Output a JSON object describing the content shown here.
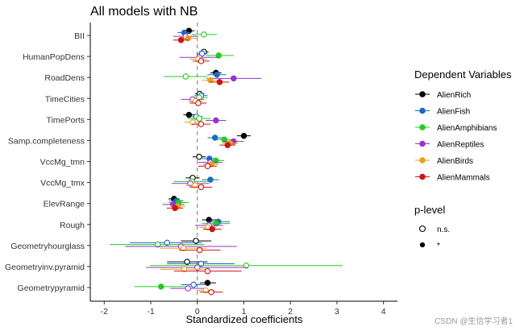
{
  "chart_data": {
    "type": "forest",
    "title": "All models with NB",
    "xlabel": "Standardized coefficients",
    "ylabel": "",
    "xlim": [
      -2.3,
      4.3
    ],
    "x_ticks": [
      -2,
      -1,
      0,
      1,
      2,
      3,
      4
    ],
    "reference_line_x": 0,
    "grid": false,
    "legend_position": "right",
    "categories": [
      "BII",
      "HumanPopDens",
      "RoadDens",
      "TimeCities",
      "TimePorts",
      "Samp.completeness",
      "VccMg_tmn",
      "VccMg_tmx",
      "ElevRange",
      "Rough",
      "Geometryhourglass",
      "Geometryinv.pyramid",
      "Geometrypyramid"
    ],
    "color_legend_title": "Dependent Variables",
    "shape_legend_title": "p-level",
    "shape_legend": [
      {
        "label": "n.s.",
        "marker": "open"
      },
      {
        "label": "*",
        "marker": "filled"
      }
    ],
    "series": [
      {
        "name": "AlienRich",
        "color": "#000000",
        "values": [
          {
            "est": -0.18,
            "lo": -0.3,
            "hi": -0.06,
            "sig": true
          },
          {
            "est": 0.14,
            "lo": 0.04,
            "hi": 0.24,
            "sig": false
          },
          {
            "est": 0.4,
            "lo": 0.28,
            "hi": 0.52,
            "sig": true
          },
          {
            "est": 0.05,
            "lo": -0.05,
            "hi": 0.15,
            "sig": false
          },
          {
            "est": -0.18,
            "lo": -0.3,
            "hi": -0.06,
            "sig": true
          },
          {
            "est": 1.0,
            "lo": 0.85,
            "hi": 1.15,
            "sig": true
          },
          {
            "est": 0.04,
            "lo": -0.1,
            "hi": 0.18,
            "sig": false
          },
          {
            "est": -0.1,
            "lo": -0.25,
            "hi": 0.05,
            "sig": false
          },
          {
            "est": -0.5,
            "lo": -0.62,
            "hi": -0.38,
            "sig": true
          },
          {
            "est": 0.25,
            "lo": 0.1,
            "hi": 0.4,
            "sig": true
          },
          {
            "est": -0.03,
            "lo": -0.35,
            "hi": 0.3,
            "sig": false
          },
          {
            "est": -0.22,
            "lo": -0.65,
            "hi": 0.22,
            "sig": false
          },
          {
            "est": 0.22,
            "lo": 0.05,
            "hi": 0.4,
            "sig": true
          }
        ]
      },
      {
        "name": "AlienFish",
        "color": "#1a6bbf",
        "values": [
          {
            "est": -0.28,
            "lo": -0.42,
            "hi": -0.14,
            "sig": true
          },
          {
            "est": 0.1,
            "lo": -0.02,
            "hi": 0.22,
            "sig": false
          },
          {
            "est": 0.42,
            "lo": 0.22,
            "hi": 0.62,
            "sig": true
          },
          {
            "est": 0.08,
            "lo": -0.06,
            "hi": 0.22,
            "sig": false
          },
          {
            "est": -0.02,
            "lo": -0.16,
            "hi": 0.12,
            "sig": false
          },
          {
            "est": 0.38,
            "lo": 0.22,
            "hi": 0.54,
            "sig": true
          },
          {
            "est": 0.26,
            "lo": 0.1,
            "hi": 0.42,
            "sig": true
          },
          {
            "est": 0.28,
            "lo": 0.1,
            "hi": 0.46,
            "sig": true
          },
          {
            "est": -0.45,
            "lo": -0.6,
            "hi": -0.3,
            "sig": true
          },
          {
            "est": 0.45,
            "lo": 0.2,
            "hi": 0.7,
            "sig": true
          },
          {
            "est": -0.65,
            "lo": -1.45,
            "hi": 0.1,
            "sig": false
          },
          {
            "est": 0.08,
            "lo": -0.65,
            "hi": 0.8,
            "sig": false
          },
          {
            "est": -0.08,
            "lo": -0.35,
            "hi": 0.2,
            "sig": false
          }
        ]
      },
      {
        "name": "AlienAmphibians",
        "color": "#22cc22",
        "values": [
          {
            "est": 0.14,
            "lo": -0.12,
            "hi": 0.42,
            "sig": false
          },
          {
            "est": 0.46,
            "lo": 0.18,
            "hi": 0.78,
            "sig": true
          },
          {
            "est": -0.25,
            "lo": -0.72,
            "hi": 0.22,
            "sig": false
          },
          {
            "est": 0.04,
            "lo": -0.14,
            "hi": 0.22,
            "sig": false
          },
          {
            "est": 0.04,
            "lo": -0.2,
            "hi": 0.28,
            "sig": false
          },
          {
            "est": 0.58,
            "lo": 0.42,
            "hi": 0.74,
            "sig": true
          },
          {
            "est": 0.4,
            "lo": 0.22,
            "hi": 0.58,
            "sig": true
          },
          {
            "est": -0.12,
            "lo": -0.5,
            "hi": 0.26,
            "sig": false
          },
          {
            "est": -0.4,
            "lo": -0.62,
            "hi": -0.18,
            "sig": true
          },
          {
            "est": 0.4,
            "lo": 0.1,
            "hi": 0.7,
            "sig": true
          },
          {
            "est": -0.85,
            "lo": -1.88,
            "hi": 0.15,
            "sig": false
          },
          {
            "est": 1.05,
            "lo": -1.02,
            "hi": 3.12,
            "sig": false
          },
          {
            "est": -0.78,
            "lo": -1.35,
            "hi": -0.22,
            "sig": true
          }
        ]
      },
      {
        "name": "AlienReptiles",
        "color": "#9933cc",
        "values": [
          {
            "est": -0.25,
            "lo": -0.52,
            "hi": 0.02,
            "sig": false
          },
          {
            "est": 0.04,
            "lo": -0.38,
            "hi": 0.46,
            "sig": false
          },
          {
            "est": 0.78,
            "lo": 0.2,
            "hi": 1.38,
            "sig": true
          },
          {
            "est": -0.1,
            "lo": -0.35,
            "hi": 0.15,
            "sig": false
          },
          {
            "est": 0.4,
            "lo": 0.18,
            "hi": 0.62,
            "sig": true
          },
          {
            "est": 0.78,
            "lo": 0.55,
            "hi": 1.0,
            "sig": true
          },
          {
            "est": 0.28,
            "lo": 0.02,
            "hi": 0.54,
            "sig": false
          },
          {
            "est": -0.15,
            "lo": -0.55,
            "hi": 0.25,
            "sig": false
          },
          {
            "est": -0.52,
            "lo": -0.75,
            "hi": -0.28,
            "sig": true
          },
          {
            "est": 0.25,
            "lo": -0.05,
            "hi": 0.55,
            "sig": false
          },
          {
            "est": -0.35,
            "lo": -1.55,
            "hi": 0.85,
            "sig": false
          },
          {
            "est": 0.0,
            "lo": -1.1,
            "hi": 1.1,
            "sig": false
          },
          {
            "est": -0.2,
            "lo": -0.58,
            "hi": 0.18,
            "sig": false
          }
        ]
      },
      {
        "name": "AlienBirds",
        "color": "#e6a21a",
        "values": [
          {
            "est": -0.2,
            "lo": -0.38,
            "hi": -0.02,
            "sig": true
          },
          {
            "est": 0.02,
            "lo": -0.16,
            "hi": 0.2,
            "sig": false
          },
          {
            "est": 0.28,
            "lo": 0.1,
            "hi": 0.46,
            "sig": true
          },
          {
            "est": -0.04,
            "lo": -0.2,
            "hi": 0.12,
            "sig": false
          },
          {
            "est": -0.1,
            "lo": -0.28,
            "hi": 0.08,
            "sig": false
          },
          {
            "est": 0.7,
            "lo": 0.52,
            "hi": 0.88,
            "sig": true
          },
          {
            "est": 0.3,
            "lo": 0.12,
            "hi": 0.48,
            "sig": true
          },
          {
            "est": -0.05,
            "lo": -0.25,
            "hi": 0.15,
            "sig": false
          },
          {
            "est": -0.42,
            "lo": -0.58,
            "hi": -0.26,
            "sig": true
          },
          {
            "est": 0.22,
            "lo": 0.04,
            "hi": 0.4,
            "sig": false
          },
          {
            "est": -0.3,
            "lo": -0.8,
            "hi": 0.2,
            "sig": false
          },
          {
            "est": -0.28,
            "lo": -0.8,
            "hi": 0.24,
            "sig": false
          },
          {
            "est": 0.18,
            "lo": -0.02,
            "hi": 0.38,
            "sig": false
          }
        ]
      },
      {
        "name": "AlienMammals",
        "color": "#cc1414",
        "values": [
          {
            "est": -0.35,
            "lo": -0.52,
            "hi": -0.18,
            "sig": true
          },
          {
            "est": 0.08,
            "lo": -0.1,
            "hi": 0.26,
            "sig": false
          },
          {
            "est": 0.48,
            "lo": 0.28,
            "hi": 0.68,
            "sig": true
          },
          {
            "est": 0.02,
            "lo": -0.16,
            "hi": 0.2,
            "sig": false
          },
          {
            "est": 0.08,
            "lo": -0.12,
            "hi": 0.28,
            "sig": false
          },
          {
            "est": 0.65,
            "lo": 0.48,
            "hi": 0.82,
            "sig": true
          },
          {
            "est": 0.22,
            "lo": 0.02,
            "hi": 0.42,
            "sig": false
          },
          {
            "est": 0.08,
            "lo": -0.16,
            "hi": 0.32,
            "sig": false
          },
          {
            "est": -0.48,
            "lo": -0.66,
            "hi": -0.3,
            "sig": true
          },
          {
            "est": 0.32,
            "lo": 0.12,
            "hi": 0.52,
            "sig": true
          },
          {
            "est": 0.05,
            "lo": -0.4,
            "hi": 0.5,
            "sig": false
          },
          {
            "est": 0.22,
            "lo": -0.5,
            "hi": 0.95,
            "sig": false
          },
          {
            "est": 0.3,
            "lo": 0.05,
            "hi": 0.55,
            "sig": false
          }
        ]
      }
    ]
  },
  "watermark": "CSDN @生信学习者1"
}
